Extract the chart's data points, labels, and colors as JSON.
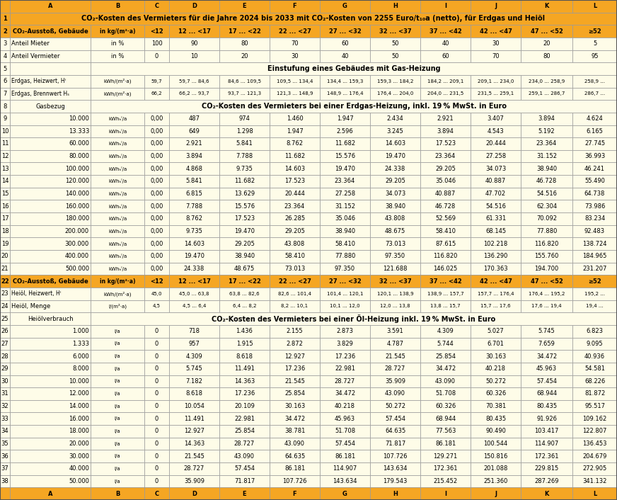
{
  "title": "CO₂-Kosten des Vermieters für die Jahre 2024 bis 2033 mit CO₂-Kosten von 2255 Euro/t₁₀a (netto), für Erdgas und Heiöl",
  "orange": "#F5A623",
  "light_yellow": "#FEFCE8",
  "col_letters": [
    "A",
    "B",
    "C",
    "D",
    "E",
    "F",
    "G",
    "H",
    "I",
    "J",
    "K",
    "L"
  ],
  "gas_rows": [
    [
      "10.000",
      "kWhₕᴵ/a",
      "0,00",
      "487",
      "974",
      "1.460",
      "1.947",
      "2.434",
      "2.921",
      "3.407",
      "3.894",
      "4.624"
    ],
    [
      "13.333",
      "kWhₕᴵ/a",
      "0,00",
      "649",
      "1.298",
      "1.947",
      "2.596",
      "3.245",
      "3.894",
      "4.543",
      "5.192",
      "6.165"
    ],
    [
      "60.000",
      "kWhₕᴵ/a",
      "0,00",
      "2.921",
      "5.841",
      "8.762",
      "11.682",
      "14.603",
      "17.523",
      "20.444",
      "23.364",
      "27.745"
    ],
    [
      "80.000",
      "kWhₕᴵ/a",
      "0,00",
      "3.894",
      "7.788",
      "11.682",
      "15.576",
      "19.470",
      "23.364",
      "27.258",
      "31.152",
      "36.993"
    ],
    [
      "100.000",
      "kWhₕᴵ/a",
      "0,00",
      "4.868",
      "9.735",
      "14.603",
      "19.470",
      "24.338",
      "29.205",
      "34.073",
      "38.940",
      "46.241"
    ],
    [
      "120.000",
      "kWhₕᴵ/a",
      "0,00",
      "5.841",
      "11.682",
      "17.523",
      "23.364",
      "29.205",
      "35.046",
      "40.887",
      "46.728",
      "55.490"
    ],
    [
      "140.000",
      "kWhₕᴵ/a",
      "0,00",
      "6.815",
      "13.629",
      "20.444",
      "27.258",
      "34.073",
      "40.887",
      "47.702",
      "54.516",
      "64.738"
    ],
    [
      "160.000",
      "kWhₕᴵ/a",
      "0,00",
      "7.788",
      "15.576",
      "23.364",
      "31.152",
      "38.940",
      "46.728",
      "54.516",
      "62.304",
      "73.986"
    ],
    [
      "180.000",
      "kWhₕᴵ/a",
      "0,00",
      "8.762",
      "17.523",
      "26.285",
      "35.046",
      "43.808",
      "52.569",
      "61.331",
      "70.092",
      "83.234"
    ],
    [
      "200.000",
      "kWhₕᴵ/a",
      "0,00",
      "9.735",
      "19.470",
      "29.205",
      "38.940",
      "48.675",
      "58.410",
      "68.145",
      "77.880",
      "92.483"
    ],
    [
      "300.000",
      "kWhₕᴵ/a",
      "0,00",
      "14.603",
      "29.205",
      "43.808",
      "58.410",
      "73.013",
      "87.615",
      "102.218",
      "116.820",
      "138.724"
    ],
    [
      "400.000",
      "kWhₕᴵ/a",
      "0,00",
      "19.470",
      "38.940",
      "58.410",
      "77.880",
      "97.350",
      "116.820",
      "136.290",
      "155.760",
      "184.965"
    ],
    [
      "500.000",
      "kWhₕᴵ/a",
      "0,00",
      "24.338",
      "48.675",
      "73.013",
      "97.350",
      "121.688",
      "146.025",
      "170.363",
      "194.700",
      "231.207"
    ]
  ],
  "oil_rows": [
    [
      "1.000",
      "l/a",
      "0",
      "718",
      "1.436",
      "2.155",
      "2.873",
      "3.591",
      "4.309",
      "5.027",
      "5.745",
      "6.823"
    ],
    [
      "1.333",
      "l/a",
      "0",
      "957",
      "1.915",
      "2.872",
      "3.829",
      "4.787",
      "5.744",
      "6.701",
      "7.659",
      "9.095"
    ],
    [
      "6.000",
      "l/a",
      "0",
      "4.309",
      "8.618",
      "12.927",
      "17.236",
      "21.545",
      "25.854",
      "30.163",
      "34.472",
      "40.936"
    ],
    [
      "8.000",
      "l/a",
      "0",
      "5.745",
      "11.491",
      "17.236",
      "22.981",
      "28.727",
      "34.472",
      "40.218",
      "45.963",
      "54.581"
    ],
    [
      "10.000",
      "l/a",
      "0",
      "7.182",
      "14.363",
      "21.545",
      "28.727",
      "35.909",
      "43.090",
      "50.272",
      "57.454",
      "68.226"
    ],
    [
      "12.000",
      "l/a",
      "0",
      "8.618",
      "17.236",
      "25.854",
      "34.472",
      "43.090",
      "51.708",
      "60.326",
      "68.944",
      "81.872"
    ],
    [
      "14.000",
      "l/a",
      "0",
      "10.054",
      "20.109",
      "30.163",
      "40.218",
      "50.272",
      "60.326",
      "70.381",
      "80.435",
      "95.517"
    ],
    [
      "16.000",
      "l/a",
      "0",
      "11.491",
      "22.981",
      "34.472",
      "45.963",
      "57.454",
      "68.944",
      "80.435",
      "91.926",
      "109.162"
    ],
    [
      "18.000",
      "l/a",
      "0",
      "12.927",
      "25.854",
      "38.781",
      "51.708",
      "64.635",
      "77.563",
      "90.490",
      "103.417",
      "122.807"
    ],
    [
      "20.000",
      "l/a",
      "0",
      "14.363",
      "28.727",
      "43.090",
      "57.454",
      "71.817",
      "86.181",
      "100.544",
      "114.907",
      "136.453"
    ],
    [
      "30.000",
      "l/a",
      "0",
      "21.545",
      "43.090",
      "64.635",
      "86.181",
      "107.726",
      "129.271",
      "150.816",
      "172.361",
      "204.679"
    ],
    [
      "40.000",
      "l/a",
      "0",
      "28.727",
      "57.454",
      "86.181",
      "114.907",
      "143.634",
      "172.361",
      "201.088",
      "229.815",
      "272.905"
    ],
    [
      "50.000",
      "l/a",
      "0",
      "35.909",
      "71.817",
      "107.726",
      "143.634",
      "179.543",
      "215.452",
      "251.360",
      "287.269",
      "341.132"
    ]
  ]
}
